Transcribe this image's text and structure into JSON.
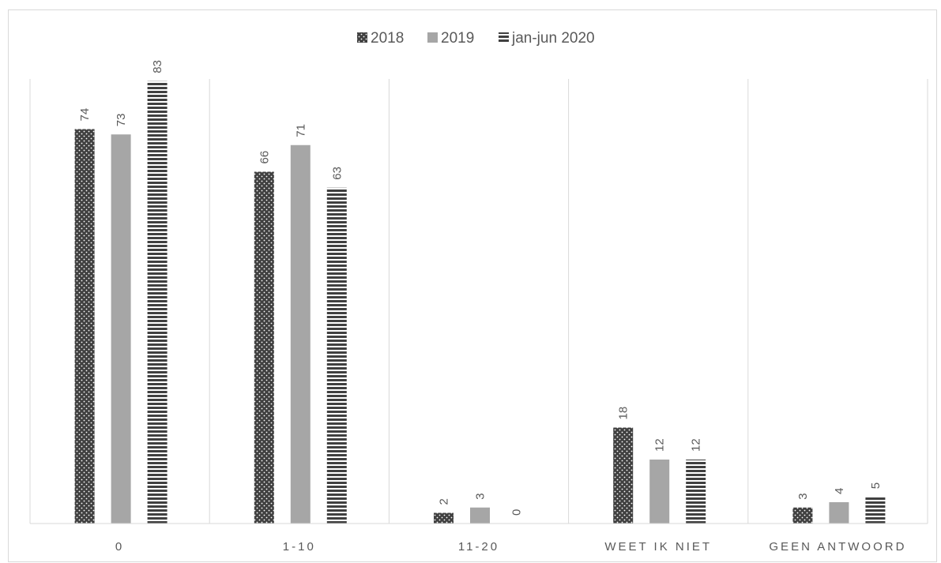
{
  "chart_data": {
    "type": "bar",
    "categories": [
      "0",
      "1-10",
      "11-20",
      "WEET IK NIET",
      "GEEN ANTWOORD"
    ],
    "series": [
      {
        "name": "2018",
        "values": [
          74,
          66,
          2,
          18,
          3
        ],
        "pattern": "dotted",
        "color": "#404040"
      },
      {
        "name": "2019",
        "values": [
          73,
          71,
          3,
          12,
          4
        ],
        "pattern": "solid",
        "color": "#a6a6a6"
      },
      {
        "name": "jan-jun 2020",
        "values": [
          83,
          63,
          0,
          12,
          5
        ],
        "pattern": "horizontal-stripes",
        "color": "#404040"
      }
    ],
    "ylim": [
      0,
      85
    ],
    "legend_position": "top",
    "gridlines": "vertical category separators",
    "data_labels": true,
    "data_label_rotation": "vertical",
    "title": "",
    "xlabel": "",
    "ylabel": ""
  }
}
